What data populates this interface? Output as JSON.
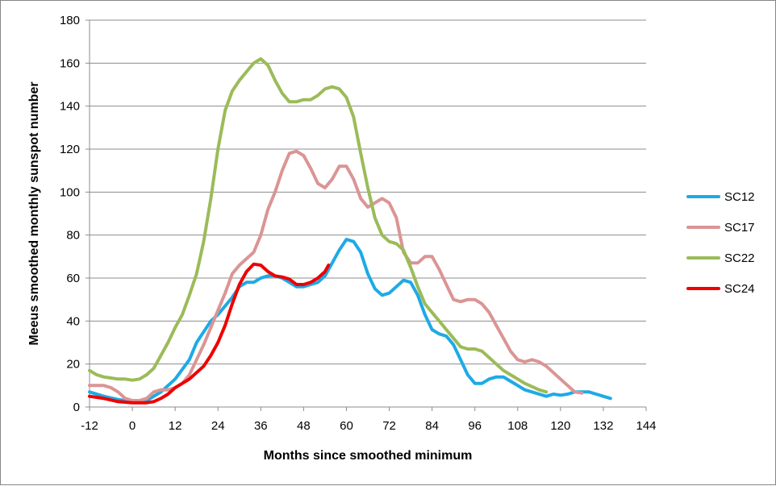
{
  "chart_data": {
    "type": "line",
    "title": "",
    "xlabel": "Months since smoothed minimum",
    "ylabel": "Meeus smoothed monthly sunspot number",
    "xlim": [
      -12,
      144
    ],
    "ylim": [
      0,
      180
    ],
    "x_ticks": [
      -12,
      0,
      12,
      24,
      36,
      48,
      60,
      72,
      84,
      96,
      108,
      120,
      132,
      144
    ],
    "y_ticks": [
      0,
      20,
      40,
      60,
      80,
      100,
      120,
      140,
      160,
      180
    ],
    "grid": "horizontal",
    "legend": "right",
    "series": [
      {
        "name": "SC12",
        "color": "#1eaae6",
        "points": [
          [
            -12,
            7
          ],
          [
            -8,
            5
          ],
          [
            -4,
            3.5
          ],
          [
            0,
            2.5
          ],
          [
            4,
            3
          ],
          [
            8,
            7
          ],
          [
            12,
            13
          ],
          [
            16,
            22
          ],
          [
            18,
            30
          ],
          [
            20,
            35
          ],
          [
            22,
            40
          ],
          [
            24,
            43
          ],
          [
            26,
            47
          ],
          [
            28,
            51
          ],
          [
            30,
            56
          ],
          [
            32,
            58
          ],
          [
            34,
            58
          ],
          [
            36,
            60
          ],
          [
            38,
            61
          ],
          [
            40,
            61
          ],
          [
            42,
            60
          ],
          [
            44,
            58
          ],
          [
            46,
            56
          ],
          [
            48,
            56
          ],
          [
            50,
            57
          ],
          [
            52,
            58
          ],
          [
            54,
            61
          ],
          [
            56,
            67
          ],
          [
            58,
            73
          ],
          [
            60,
            78
          ],
          [
            62,
            77
          ],
          [
            64,
            72
          ],
          [
            66,
            62
          ],
          [
            68,
            55
          ],
          [
            70,
            52
          ],
          [
            72,
            53
          ],
          [
            74,
            56
          ],
          [
            76,
            59
          ],
          [
            78,
            58
          ],
          [
            80,
            52
          ],
          [
            82,
            43
          ],
          [
            84,
            36
          ],
          [
            86,
            34
          ],
          [
            88,
            33
          ],
          [
            90,
            29
          ],
          [
            92,
            22
          ],
          [
            94,
            15
          ],
          [
            96,
            11
          ],
          [
            98,
            11
          ],
          [
            100,
            13
          ],
          [
            102,
            14
          ],
          [
            104,
            14
          ],
          [
            106,
            12
          ],
          [
            108,
            10
          ],
          [
            110,
            8
          ],
          [
            112,
            7
          ],
          [
            114,
            6
          ],
          [
            116,
            5
          ],
          [
            118,
            6
          ],
          [
            120,
            5.5
          ],
          [
            122,
            6
          ],
          [
            124,
            7
          ],
          [
            126,
            7
          ],
          [
            128,
            7
          ],
          [
            130,
            6
          ],
          [
            132,
            5
          ],
          [
            134,
            4
          ]
        ]
      },
      {
        "name": "SC17",
        "color": "#da9594",
        "points": [
          [
            -12,
            10
          ],
          [
            -8,
            10
          ],
          [
            -6,
            9
          ],
          [
            -4,
            7
          ],
          [
            -2,
            4
          ],
          [
            0,
            3
          ],
          [
            2,
            3
          ],
          [
            4,
            4
          ],
          [
            6,
            7
          ],
          [
            8,
            8
          ],
          [
            10,
            8
          ],
          [
            12,
            9
          ],
          [
            14,
            11
          ],
          [
            16,
            15
          ],
          [
            18,
            22
          ],
          [
            20,
            29
          ],
          [
            22,
            37
          ],
          [
            24,
            45
          ],
          [
            26,
            53
          ],
          [
            28,
            62
          ],
          [
            30,
            66
          ],
          [
            32,
            69
          ],
          [
            34,
            72
          ],
          [
            36,
            80
          ],
          [
            38,
            92
          ],
          [
            40,
            100
          ],
          [
            42,
            110
          ],
          [
            44,
            118
          ],
          [
            46,
            119
          ],
          [
            48,
            117
          ],
          [
            50,
            111
          ],
          [
            52,
            104
          ],
          [
            54,
            102
          ],
          [
            56,
            106
          ],
          [
            58,
            112
          ],
          [
            60,
            112
          ],
          [
            62,
            106
          ],
          [
            64,
            97
          ],
          [
            66,
            93
          ],
          [
            68,
            95
          ],
          [
            70,
            97
          ],
          [
            72,
            95
          ],
          [
            74,
            88
          ],
          [
            76,
            72
          ],
          [
            78,
            67
          ],
          [
            80,
            67
          ],
          [
            82,
            70
          ],
          [
            84,
            70
          ],
          [
            86,
            64
          ],
          [
            88,
            57
          ],
          [
            90,
            50
          ],
          [
            92,
            49
          ],
          [
            94,
            50
          ],
          [
            96,
            50
          ],
          [
            98,
            48
          ],
          [
            100,
            44
          ],
          [
            102,
            38
          ],
          [
            104,
            32
          ],
          [
            106,
            26
          ],
          [
            108,
            22
          ],
          [
            110,
            21
          ],
          [
            112,
            22
          ],
          [
            114,
            21
          ],
          [
            116,
            19
          ],
          [
            118,
            16
          ],
          [
            120,
            13
          ],
          [
            122,
            10
          ],
          [
            124,
            7
          ],
          [
            126,
            6.5
          ]
        ]
      },
      {
        "name": "SC22",
        "color": "#9bbb59",
        "points": [
          [
            -12,
            17
          ],
          [
            -10,
            15
          ],
          [
            -8,
            14
          ],
          [
            -6,
            13.5
          ],
          [
            -4,
            13
          ],
          [
            -2,
            13
          ],
          [
            0,
            12.5
          ],
          [
            2,
            13
          ],
          [
            4,
            15
          ],
          [
            6,
            18
          ],
          [
            8,
            24
          ],
          [
            10,
            30
          ],
          [
            12,
            37
          ],
          [
            14,
            43
          ],
          [
            16,
            52
          ],
          [
            18,
            62
          ],
          [
            20,
            77
          ],
          [
            22,
            97
          ],
          [
            24,
            120
          ],
          [
            26,
            138
          ],
          [
            28,
            147
          ],
          [
            30,
            152
          ],
          [
            32,
            156
          ],
          [
            34,
            160
          ],
          [
            36,
            162
          ],
          [
            38,
            159
          ],
          [
            40,
            152
          ],
          [
            42,
            146
          ],
          [
            44,
            142
          ],
          [
            46,
            142
          ],
          [
            48,
            143
          ],
          [
            50,
            143
          ],
          [
            52,
            145
          ],
          [
            54,
            148
          ],
          [
            56,
            149
          ],
          [
            58,
            148
          ],
          [
            60,
            144
          ],
          [
            62,
            135
          ],
          [
            64,
            118
          ],
          [
            66,
            102
          ],
          [
            68,
            88
          ],
          [
            70,
            80
          ],
          [
            72,
            77
          ],
          [
            74,
            76
          ],
          [
            76,
            73
          ],
          [
            78,
            65
          ],
          [
            80,
            56
          ],
          [
            82,
            48
          ],
          [
            84,
            44
          ],
          [
            86,
            40
          ],
          [
            88,
            36
          ],
          [
            90,
            32
          ],
          [
            92,
            28
          ],
          [
            94,
            27
          ],
          [
            96,
            27
          ],
          [
            98,
            26
          ],
          [
            100,
            23
          ],
          [
            102,
            20
          ],
          [
            104,
            17
          ],
          [
            106,
            15
          ],
          [
            108,
            13
          ],
          [
            110,
            11
          ],
          [
            112,
            9.5
          ],
          [
            114,
            8
          ],
          [
            116,
            7
          ]
        ]
      },
      {
        "name": "SC24",
        "color": "#ee0000",
        "points": [
          [
            -12,
            5
          ],
          [
            -8,
            4
          ],
          [
            -4,
            2.5
          ],
          [
            0,
            2
          ],
          [
            4,
            2
          ],
          [
            6,
            2.5
          ],
          [
            8,
            4
          ],
          [
            10,
            6
          ],
          [
            12,
            9
          ],
          [
            14,
            11
          ],
          [
            16,
            13
          ],
          [
            18,
            16
          ],
          [
            20,
            19
          ],
          [
            22,
            24
          ],
          [
            24,
            30
          ],
          [
            26,
            38
          ],
          [
            28,
            48
          ],
          [
            30,
            57
          ],
          [
            32,
            63
          ],
          [
            34,
            66.5
          ],
          [
            36,
            66
          ],
          [
            38,
            63
          ],
          [
            40,
            61
          ],
          [
            42,
            60.5
          ],
          [
            44,
            59.5
          ],
          [
            46,
            57
          ],
          [
            48,
            57
          ],
          [
            50,
            58
          ],
          [
            52,
            60
          ],
          [
            54,
            63
          ],
          [
            55,
            66
          ]
        ]
      }
    ]
  }
}
